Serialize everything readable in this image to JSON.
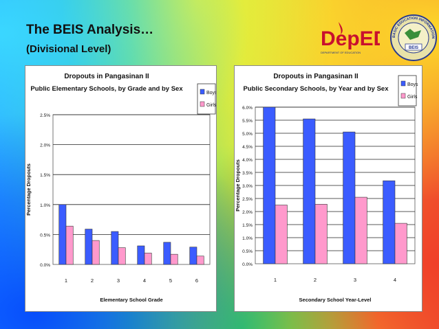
{
  "slide": {
    "title": "The BEIS Analysis…",
    "subtitle": "(Divisional Level)"
  },
  "logos": {
    "deped_text": "DepED",
    "deped_subtext": "DEPARTMENT OF EDUCATION",
    "seal_text": "BASIC EDUCATION INFORMATION SYSTEM",
    "seal_center": "BEIS"
  },
  "colors": {
    "boys": "#3b5cff",
    "girls": "#ff99cc",
    "deped_red": "#c8102e",
    "deped_blue": "#1a2f8f"
  },
  "chart_data": [
    {
      "type": "bar",
      "title": "Dropouts in Pangasinan II",
      "subtitle": "Public Elementary Schools, by Grade and by Sex",
      "xlabel": "Elementary School Grade",
      "ylabel": "Percentage Dropouts",
      "categories": [
        "1",
        "2",
        "3",
        "4",
        "5",
        "6"
      ],
      "yticks": [
        "0.0%",
        "0.5%",
        "1.0%",
        "1.5%",
        "2.0%",
        "2.5%"
      ],
      "ylim": [
        0,
        2.5
      ],
      "ystep": 0.5,
      "grid": true,
      "legend": "top-right",
      "series": [
        {
          "name": "Boys",
          "values": [
            1.0,
            0.59,
            0.55,
            0.31,
            0.37,
            0.29
          ]
        },
        {
          "name": "Girls",
          "values": [
            0.64,
            0.4,
            0.28,
            0.19,
            0.17,
            0.14
          ]
        }
      ]
    },
    {
      "type": "bar",
      "title": "Dropouts in Pangasinan II",
      "subtitle": "Public Secondary Schools, by Year and by Sex",
      "xlabel": "Secondary School Year-Level",
      "ylabel": "Percentage Dropouts",
      "categories": [
        "1",
        "2",
        "3",
        "4"
      ],
      "yticks": [
        "0.0%",
        "0.5%",
        "1.0%",
        "1.5%",
        "2.0%",
        "2.5%",
        "3.0%",
        "3.5%",
        "4.0%",
        "4.5%",
        "5.0%",
        "5.5%",
        "6.0%"
      ],
      "ylim": [
        0,
        6.0
      ],
      "ystep": 0.5,
      "grid": true,
      "legend": "top-right",
      "series": [
        {
          "name": "Boys",
          "values": [
            6.0,
            5.55,
            5.05,
            3.18
          ]
        },
        {
          "name": "Girls",
          "values": [
            2.25,
            2.28,
            2.55,
            1.55
          ]
        }
      ]
    }
  ]
}
